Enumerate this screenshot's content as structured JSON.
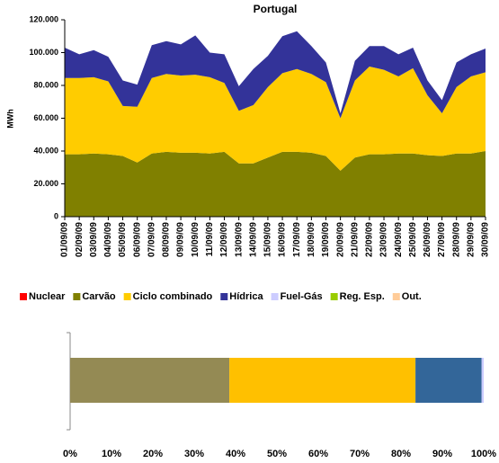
{
  "chart_data": [
    {
      "type": "area",
      "title": "Portugal",
      "y_label": "MWh",
      "stacked": true,
      "x": [
        "01/09/09",
        "02/09/09",
        "03/09/09",
        "04/09/09",
        "05/09/09",
        "06/09/09",
        "07/09/09",
        "08/09/09",
        "09/09/09",
        "10/09/09",
        "11/09/09",
        "12/09/09",
        "13/09/09",
        "14/09/09",
        "15/09/09",
        "16/09/09",
        "17/09/09",
        "18/09/09",
        "19/09/09",
        "20/09/09",
        "21/09/09",
        "22/09/09",
        "23/09/09",
        "24/09/09",
        "25/09/09",
        "26/09/09",
        "27/09/09",
        "28/09/09",
        "29/09/09",
        "30/09/09"
      ],
      "ylim": [
        0,
        120000
      ],
      "yticks": [
        0,
        {
          "value": 20000,
          "label": "20.000"
        },
        {
          "value": 40000,
          "label": "40.000"
        },
        {
          "value": 60000,
          "label": "60.000"
        },
        {
          "value": 80000,
          "label": "80.000"
        },
        {
          "value": 100000,
          "label": "100.000"
        },
        {
          "value": 120000,
          "label": "120.000"
        }
      ],
      "series": [
        {
          "name": "Nuclear",
          "color": "#ff0000",
          "values": [
            0,
            0,
            0,
            0,
            0,
            0,
            0,
            0,
            0,
            0,
            0,
            0,
            0,
            0,
            0,
            0,
            0,
            0,
            0,
            0,
            0,
            0,
            0,
            0,
            0,
            0,
            0,
            0,
            0,
            0
          ]
        },
        {
          "name": "Carvão",
          "color": "#808000",
          "values": [
            38000,
            38000,
            38500,
            38000,
            37000,
            33000,
            38500,
            39500,
            39000,
            39000,
            38500,
            39500,
            32500,
            32500,
            36000,
            39500,
            39500,
            39000,
            37000,
            28000,
            36000,
            38000,
            38000,
            38500,
            38500,
            37500,
            37000,
            38500,
            38500,
            40000
          ]
        },
        {
          "name": "Ciclo combinado",
          "color": "#ffcc00",
          "values": [
            46500,
            46500,
            46500,
            44500,
            30500,
            34000,
            46000,
            47500,
            47000,
            47500,
            46500,
            42000,
            32000,
            35500,
            43000,
            48000,
            50500,
            48000,
            45000,
            32000,
            47000,
            53500,
            51500,
            47000,
            52000,
            36500,
            26000,
            40500,
            47000,
            48000
          ]
        },
        {
          "name": "Hídrica",
          "color": "#333399",
          "values": [
            18500,
            14500,
            16500,
            15000,
            15500,
            13500,
            20000,
            20000,
            19000,
            24000,
            15000,
            17500,
            15000,
            22000,
            19000,
            22500,
            23000,
            17000,
            12000,
            3000,
            12000,
            12500,
            14500,
            13500,
            12500,
            9000,
            8000,
            15000,
            13500,
            14500
          ]
        },
        {
          "name": "Fuel-Gás",
          "color": "#ccccff",
          "values": [
            0,
            0,
            0,
            0,
            0,
            0,
            0,
            0,
            0,
            0,
            0,
            0,
            0,
            0,
            0,
            0,
            0,
            0,
            0,
            0,
            0,
            0,
            0,
            0,
            0,
            0,
            0,
            0,
            0,
            0
          ]
        },
        {
          "name": "Reg. Esp.",
          "color": "#99cc00",
          "values": [
            0,
            0,
            0,
            0,
            0,
            0,
            0,
            0,
            0,
            0,
            0,
            0,
            0,
            0,
            0,
            0,
            0,
            0,
            0,
            0,
            0,
            0,
            0,
            0,
            0,
            0,
            0,
            0,
            0,
            0
          ]
        },
        {
          "name": "Out.",
          "color": "#ffcc99",
          "values": [
            0,
            0,
            0,
            0,
            0,
            0,
            0,
            0,
            0,
            0,
            0,
            0,
            0,
            0,
            0,
            0,
            0,
            0,
            0,
            0,
            0,
            0,
            0,
            0,
            0,
            0,
            0,
            0,
            0,
            0
          ]
        }
      ]
    },
    {
      "type": "bar",
      "orientation": "horizontal",
      "stacked": true,
      "categories": [
        null
      ],
      "xlim": [
        0,
        100
      ],
      "xticks": [
        {
          "value": 0,
          "label": "0%"
        },
        {
          "value": 10,
          "label": "10%"
        },
        {
          "value": 20,
          "label": "20%"
        },
        {
          "value": 30,
          "label": "30%"
        },
        {
          "value": 40,
          "label": "40%"
        },
        {
          "value": 50,
          "label": "50%"
        },
        {
          "value": 60,
          "label": "60%"
        },
        {
          "value": 70,
          "label": "70%"
        },
        {
          "value": 80,
          "label": "80%"
        },
        {
          "value": 90,
          "label": "90%"
        },
        {
          "value": 100,
          "label": "100%"
        }
      ],
      "series": [
        {
          "color": "#ff0000",
          "values": [
            0
          ]
        },
        {
          "color": "#948a54",
          "values": [
            38.5
          ]
        },
        {
          "color": "#ffc000",
          "values": [
            45
          ]
        },
        {
          "color": "#336699",
          "values": [
            16
          ]
        },
        {
          "color": "#ccccff",
          "values": [
            0.5
          ]
        },
        {
          "color": "#99cc00",
          "values": [
            0
          ]
        },
        {
          "color": "#ffcc99",
          "values": [
            0
          ]
        }
      ]
    }
  ]
}
